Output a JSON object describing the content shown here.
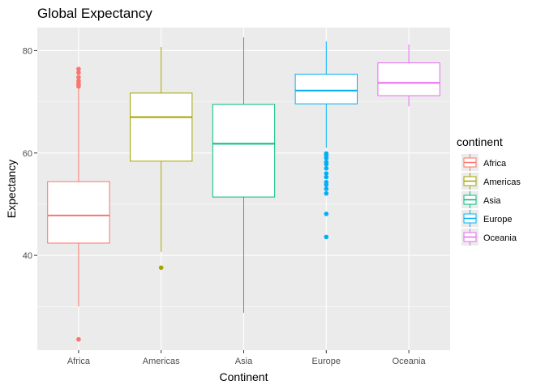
{
  "chart_data": {
    "type": "boxplot",
    "title": "Global Expectancy",
    "xlabel": "Continent",
    "ylabel": "Expectancy",
    "ylim": [
      21.5,
      84.5
    ],
    "y_ticks": [
      40,
      60,
      80
    ],
    "grid": true,
    "legend": {
      "title": "continent",
      "position": "right"
    },
    "categories": [
      "Africa",
      "Americas",
      "Asia",
      "Europe",
      "Oceania"
    ],
    "colors": [
      "#F8766D",
      "#A3A500",
      "#00BF7D",
      "#00B0F6",
      "#E76BF3"
    ],
    "series": [
      {
        "name": "Africa",
        "min": 30.0,
        "q1": 42.4,
        "median": 47.8,
        "q3": 54.4,
        "max": 72.6,
        "outliers": [
          73.0,
          73.3,
          73.6,
          74.1,
          74.8,
          75.7,
          76.4,
          23.6
        ]
      },
      {
        "name": "Americas",
        "min": 40.7,
        "q1": 58.4,
        "median": 67.0,
        "q3": 71.7,
        "max": 80.7,
        "outliers": [
          37.6
        ]
      },
      {
        "name": "Asia",
        "min": 28.8,
        "q1": 51.4,
        "median": 61.8,
        "q3": 69.5,
        "max": 82.6,
        "outliers": []
      },
      {
        "name": "Europe",
        "min": 61.0,
        "q1": 69.6,
        "median": 72.2,
        "q3": 75.4,
        "max": 81.8,
        "outliers": [
          59.9,
          59.5,
          59.0,
          58.2,
          57.8,
          57.0,
          56.0,
          55.3,
          54.3,
          53.8,
          53.0,
          52.1,
          48.1,
          43.6
        ]
      },
      {
        "name": "Oceania",
        "min": 69.1,
        "q1": 71.2,
        "median": 73.7,
        "q3": 77.6,
        "max": 81.2,
        "outliers": []
      }
    ]
  }
}
